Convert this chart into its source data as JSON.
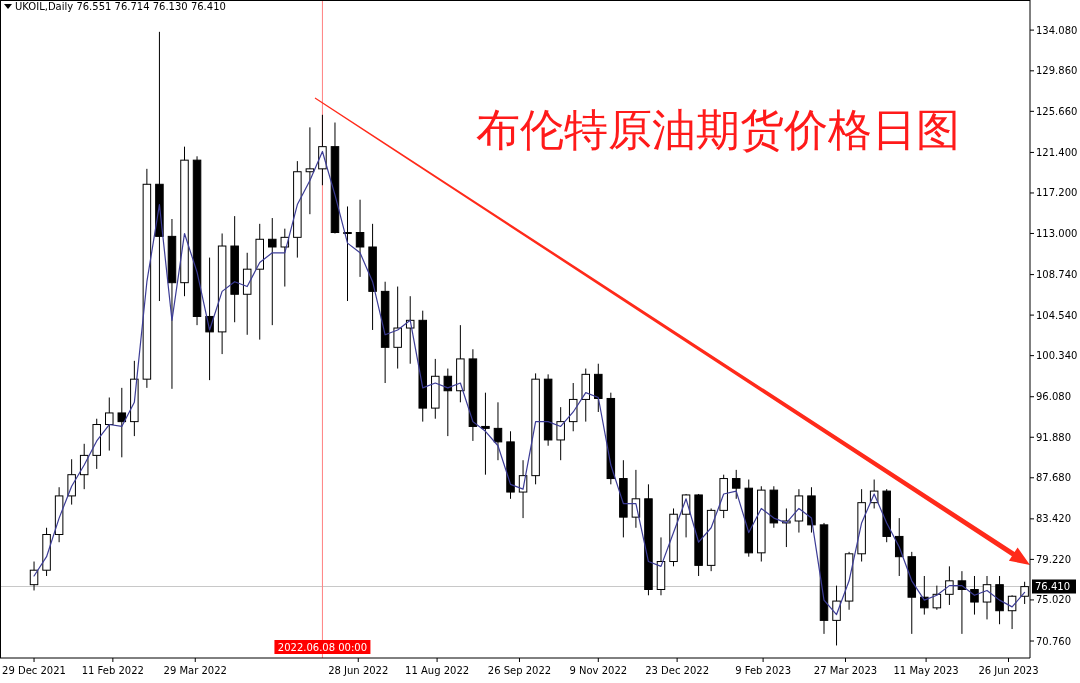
{
  "chart_data": {
    "type": "candlestick",
    "title": "UKOIL,Daily  76.551 76.714 76.130 76.410",
    "annotations": [
      "布伦特原油期货价格日图"
    ],
    "x": [
      "2021-12-29",
      "2022-01-05",
      "2022-01-12",
      "2022-01-19",
      "2022-01-26",
      "2022-02-02",
      "2022-02-09",
      "2022-02-16",
      "2022-02-23",
      "2022-03-02",
      "2022-03-09",
      "2022-03-16",
      "2022-03-23",
      "2022-03-30",
      "2022-04-06",
      "2022-04-13",
      "2022-04-20",
      "2022-04-27",
      "2022-05-04",
      "2022-05-11",
      "2022-05-18",
      "2022-05-25",
      "2022-06-01",
      "2022-06-08",
      "2022-06-15",
      "2022-06-22",
      "2022-06-29",
      "2022-07-06",
      "2022-07-13",
      "2022-07-20",
      "2022-07-27",
      "2022-08-03",
      "2022-08-10",
      "2022-08-17",
      "2022-08-24",
      "2022-08-31",
      "2022-09-07",
      "2022-09-14",
      "2022-09-21",
      "2022-09-28",
      "2022-10-05",
      "2022-10-12",
      "2022-10-19",
      "2022-10-26",
      "2022-11-02",
      "2022-11-09",
      "2022-11-16",
      "2022-11-23",
      "2022-11-30",
      "2022-12-07",
      "2022-12-14",
      "2022-12-21",
      "2022-12-28",
      "2023-01-04",
      "2023-01-11",
      "2023-01-18",
      "2023-01-25",
      "2023-02-01",
      "2023-02-08",
      "2023-02-15",
      "2023-02-22",
      "2023-03-01",
      "2023-03-08",
      "2023-03-15",
      "2023-03-22",
      "2023-03-29",
      "2023-04-05",
      "2023-04-12",
      "2023-04-19",
      "2023-04-26",
      "2023-05-03",
      "2023-05-10",
      "2023-05-17",
      "2023-05-24",
      "2023-05-31",
      "2023-06-07",
      "2023-06-14",
      "2023-06-21",
      "2023-06-28",
      "2023-07-05"
    ],
    "ohlc": [
      [
        76.6,
        79.0,
        76.0,
        78.1
      ],
      [
        78.1,
        82.5,
        77.5,
        81.8
      ],
      [
        81.8,
        86.7,
        81.0,
        85.8
      ],
      [
        85.8,
        89.6,
        84.9,
        88.0
      ],
      [
        88.0,
        91.2,
        86.5,
        90.0
      ],
      [
        90.0,
        93.8,
        88.6,
        93.2
      ],
      [
        93.2,
        96.0,
        90.5,
        94.4
      ],
      [
        94.4,
        97.0,
        89.8,
        93.5
      ],
      [
        93.5,
        99.8,
        92.0,
        97.9
      ],
      [
        97.9,
        119.7,
        97.0,
        118.1
      ],
      [
        118.1,
        133.9,
        106.0,
        112.7
      ],
      [
        112.7,
        114.5,
        96.9,
        107.9
      ],
      [
        107.9,
        122.0,
        106.5,
        120.6
      ],
      [
        120.6,
        121.0,
        103.5,
        104.4
      ],
      [
        104.4,
        110.5,
        97.8,
        102.8
      ],
      [
        102.8,
        113.0,
        100.5,
        111.7
      ],
      [
        111.7,
        114.8,
        103.8,
        106.7
      ],
      [
        106.7,
        111.0,
        102.5,
        109.3
      ],
      [
        109.3,
        114.0,
        102.0,
        112.4
      ],
      [
        112.4,
        114.6,
        103.5,
        111.6
      ],
      [
        111.6,
        113.5,
        107.5,
        112.6
      ],
      [
        112.6,
        120.5,
        110.5,
        119.4
      ],
      [
        119.4,
        124.0,
        115.0,
        119.7
      ],
      [
        119.7,
        125.3,
        118.0,
        122.0
      ],
      [
        122.0,
        124.5,
        113.0,
        113.1
      ],
      [
        113.1,
        115.8,
        106.0,
        113.1
      ],
      [
        113.1,
        116.5,
        108.5,
        111.6
      ],
      [
        111.6,
        114.0,
        103.0,
        107.0
      ],
      [
        107.0,
        108.0,
        97.5,
        101.2
      ],
      [
        101.2,
        107.5,
        99.0,
        103.2
      ],
      [
        103.2,
        106.5,
        99.5,
        104.0
      ],
      [
        104.0,
        105.0,
        93.5,
        94.9
      ],
      [
        94.9,
        100.0,
        93.8,
        98.2
      ],
      [
        98.2,
        99.0,
        92.0,
        96.7
      ],
      [
        96.7,
        103.5,
        95.5,
        100.0
      ],
      [
        100.0,
        101.0,
        91.5,
        93.0
      ],
      [
        93.0,
        96.5,
        88.0,
        92.8
      ],
      [
        92.8,
        95.5,
        89.5,
        91.4
      ],
      [
        91.4,
        92.5,
        85.5,
        86.2
      ],
      [
        86.2,
        89.5,
        83.5,
        87.9
      ],
      [
        87.9,
        98.5,
        87.0,
        97.9
      ],
      [
        97.9,
        98.4,
        91.0,
        91.6
      ],
      [
        91.6,
        95.0,
        89.5,
        93.5
      ],
      [
        93.5,
        97.5,
        92.5,
        95.8
      ],
      [
        95.8,
        99.0,
        93.5,
        98.4
      ],
      [
        98.4,
        99.5,
        94.5,
        95.9
      ],
      [
        95.9,
        96.5,
        87.0,
        87.6
      ],
      [
        87.6,
        89.5,
        81.5,
        83.6
      ],
      [
        83.6,
        88.5,
        82.5,
        85.5
      ],
      [
        85.5,
        87.0,
        75.5,
        76.1
      ],
      [
        76.1,
        81.5,
        75.5,
        79.0
      ],
      [
        79.0,
        84.5,
        78.5,
        83.9
      ],
      [
        83.9,
        86.0,
        81.5,
        85.9
      ],
      [
        85.9,
        86.0,
        77.5,
        78.6
      ],
      [
        78.6,
        84.5,
        78.0,
        84.3
      ],
      [
        84.3,
        88.0,
        83.5,
        87.6
      ],
      [
        87.6,
        88.5,
        85.5,
        86.6
      ],
      [
        86.6,
        87.5,
        79.5,
        79.9
      ],
      [
        79.9,
        86.8,
        79.0,
        86.4
      ],
      [
        86.4,
        86.8,
        82.5,
        83.0
      ],
      [
        83.0,
        84.5,
        80.5,
        83.2
      ],
      [
        83.2,
        86.5,
        82.0,
        85.8
      ],
      [
        85.8,
        86.7,
        82.0,
        82.8
      ],
      [
        82.8,
        83.0,
        71.5,
        72.9
      ],
      [
        72.9,
        76.5,
        70.3,
        74.9
      ],
      [
        74.9,
        80.0,
        74.0,
        79.8
      ],
      [
        79.8,
        86.5,
        79.0,
        85.1
      ],
      [
        85.1,
        87.5,
        84.5,
        86.3
      ],
      [
        86.3,
        86.5,
        81.0,
        81.6
      ],
      [
        81.6,
        83.5,
        77.5,
        79.5
      ],
      [
        79.5,
        80.0,
        71.5,
        75.3
      ],
      [
        75.3,
        77.5,
        73.5,
        74.2
      ],
      [
        74.2,
        76.5,
        74.0,
        75.6
      ],
      [
        75.6,
        78.5,
        74.5,
        77.0
      ],
      [
        77.0,
        78.0,
        71.5,
        76.1
      ],
      [
        76.1,
        77.5,
        73.5,
        74.8
      ],
      [
        74.8,
        77.5,
        73.0,
        76.6
      ],
      [
        76.6,
        77.5,
        72.5,
        73.9
      ],
      [
        73.9,
        75.5,
        72.0,
        75.4
      ],
      [
        75.4,
        76.9,
        74.6,
        76.4
      ]
    ],
    "series": [
      {
        "type": "line",
        "color": "#3c3c96",
        "values": [
          77.5,
          79.5,
          83.5,
          86.8,
          89.0,
          91.5,
          93.2,
          93.0,
          95.5,
          108,
          116,
          104,
          113,
          109,
          103,
          107,
          108,
          107.5,
          110,
          111,
          111,
          116,
          118.5,
          121.5,
          117,
          112,
          111,
          108,
          102.5,
          103,
          104,
          97,
          97.5,
          97,
          97.5,
          93.5,
          92.5,
          91,
          87,
          86.5,
          93.5,
          93.5,
          93,
          94.5,
          96.5,
          96,
          89,
          85,
          85,
          79,
          78.5,
          82,
          85.5,
          81,
          82.5,
          86,
          86.3,
          82,
          84.5,
          83.5,
          83,
          84.5,
          83.5,
          75,
          73.5,
          77,
          83,
          86,
          83,
          80.5,
          77,
          75,
          75.5,
          76.5,
          76.5,
          75.5,
          76,
          75,
          74.3,
          75.8
        ]
      }
    ],
    "ref_lines": [
      {
        "axis": "y",
        "value": 76.41,
        "label": "76.410",
        "color": "#c8c8c8"
      },
      {
        "axis": "x",
        "value": "2022-06-08",
        "label": "2022.06.08 00:00",
        "color": "#ff8080"
      }
    ],
    "xlim": [
      "2021-12-10",
      "2023-07-08"
    ],
    "xticks": [
      {
        "value": "2021-12-29",
        "label": "29 Dec 2021"
      },
      {
        "value": "2022-02-11",
        "label": "11 Feb 2022"
      },
      {
        "value": "2022-03-29",
        "label": "29 Mar 2022"
      },
      {
        "value": "2022-06-28",
        "label": "28 Jun 2022"
      },
      {
        "value": "2022-08-11",
        "label": "11 Aug 2022"
      },
      {
        "value": "2022-09-26",
        "label": "26 Sep 2022"
      },
      {
        "value": "2022-11-09",
        "label": "9 Nov 2022"
      },
      {
        "value": "2022-12-23",
        "label": "23 Dec 2022"
      },
      {
        "value": "2023-02-09",
        "label": "9 Feb 2023"
      },
      {
        "value": "2023-03-27",
        "label": "27 Mar 2023"
      },
      {
        "value": "2023-05-11",
        "label": "11 May 2023"
      },
      {
        "value": "2023-06-26",
        "label": "26 Jun 2023"
      }
    ],
    "ylim": [
      69.0,
      137.2
    ],
    "yticks": [
      {
        "value": 70.76,
        "label": "70.760"
      },
      {
        "value": 75.02,
        "label": "75.020"
      },
      {
        "value": 79.22,
        "label": "79.220"
      },
      {
        "value": 83.42,
        "label": "83.420"
      },
      {
        "value": 87.68,
        "label": "87.680"
      },
      {
        "value": 91.88,
        "label": "91.880"
      },
      {
        "value": 96.08,
        "label": "96.080"
      },
      {
        "value": 100.34,
        "label": "100.340"
      },
      {
        "value": 104.54,
        "label": "104.540"
      },
      {
        "value": 108.74,
        "label": "108.740"
      },
      {
        "value": 113.0,
        "label": "113.000"
      },
      {
        "value": 117.2,
        "label": "117.200"
      },
      {
        "value": 121.4,
        "label": "121.400"
      },
      {
        "value": 125.66,
        "label": "125.660"
      },
      {
        "value": 129.86,
        "label": "129.860"
      },
      {
        "value": 134.08,
        "label": "134.080"
      }
    ]
  }
}
